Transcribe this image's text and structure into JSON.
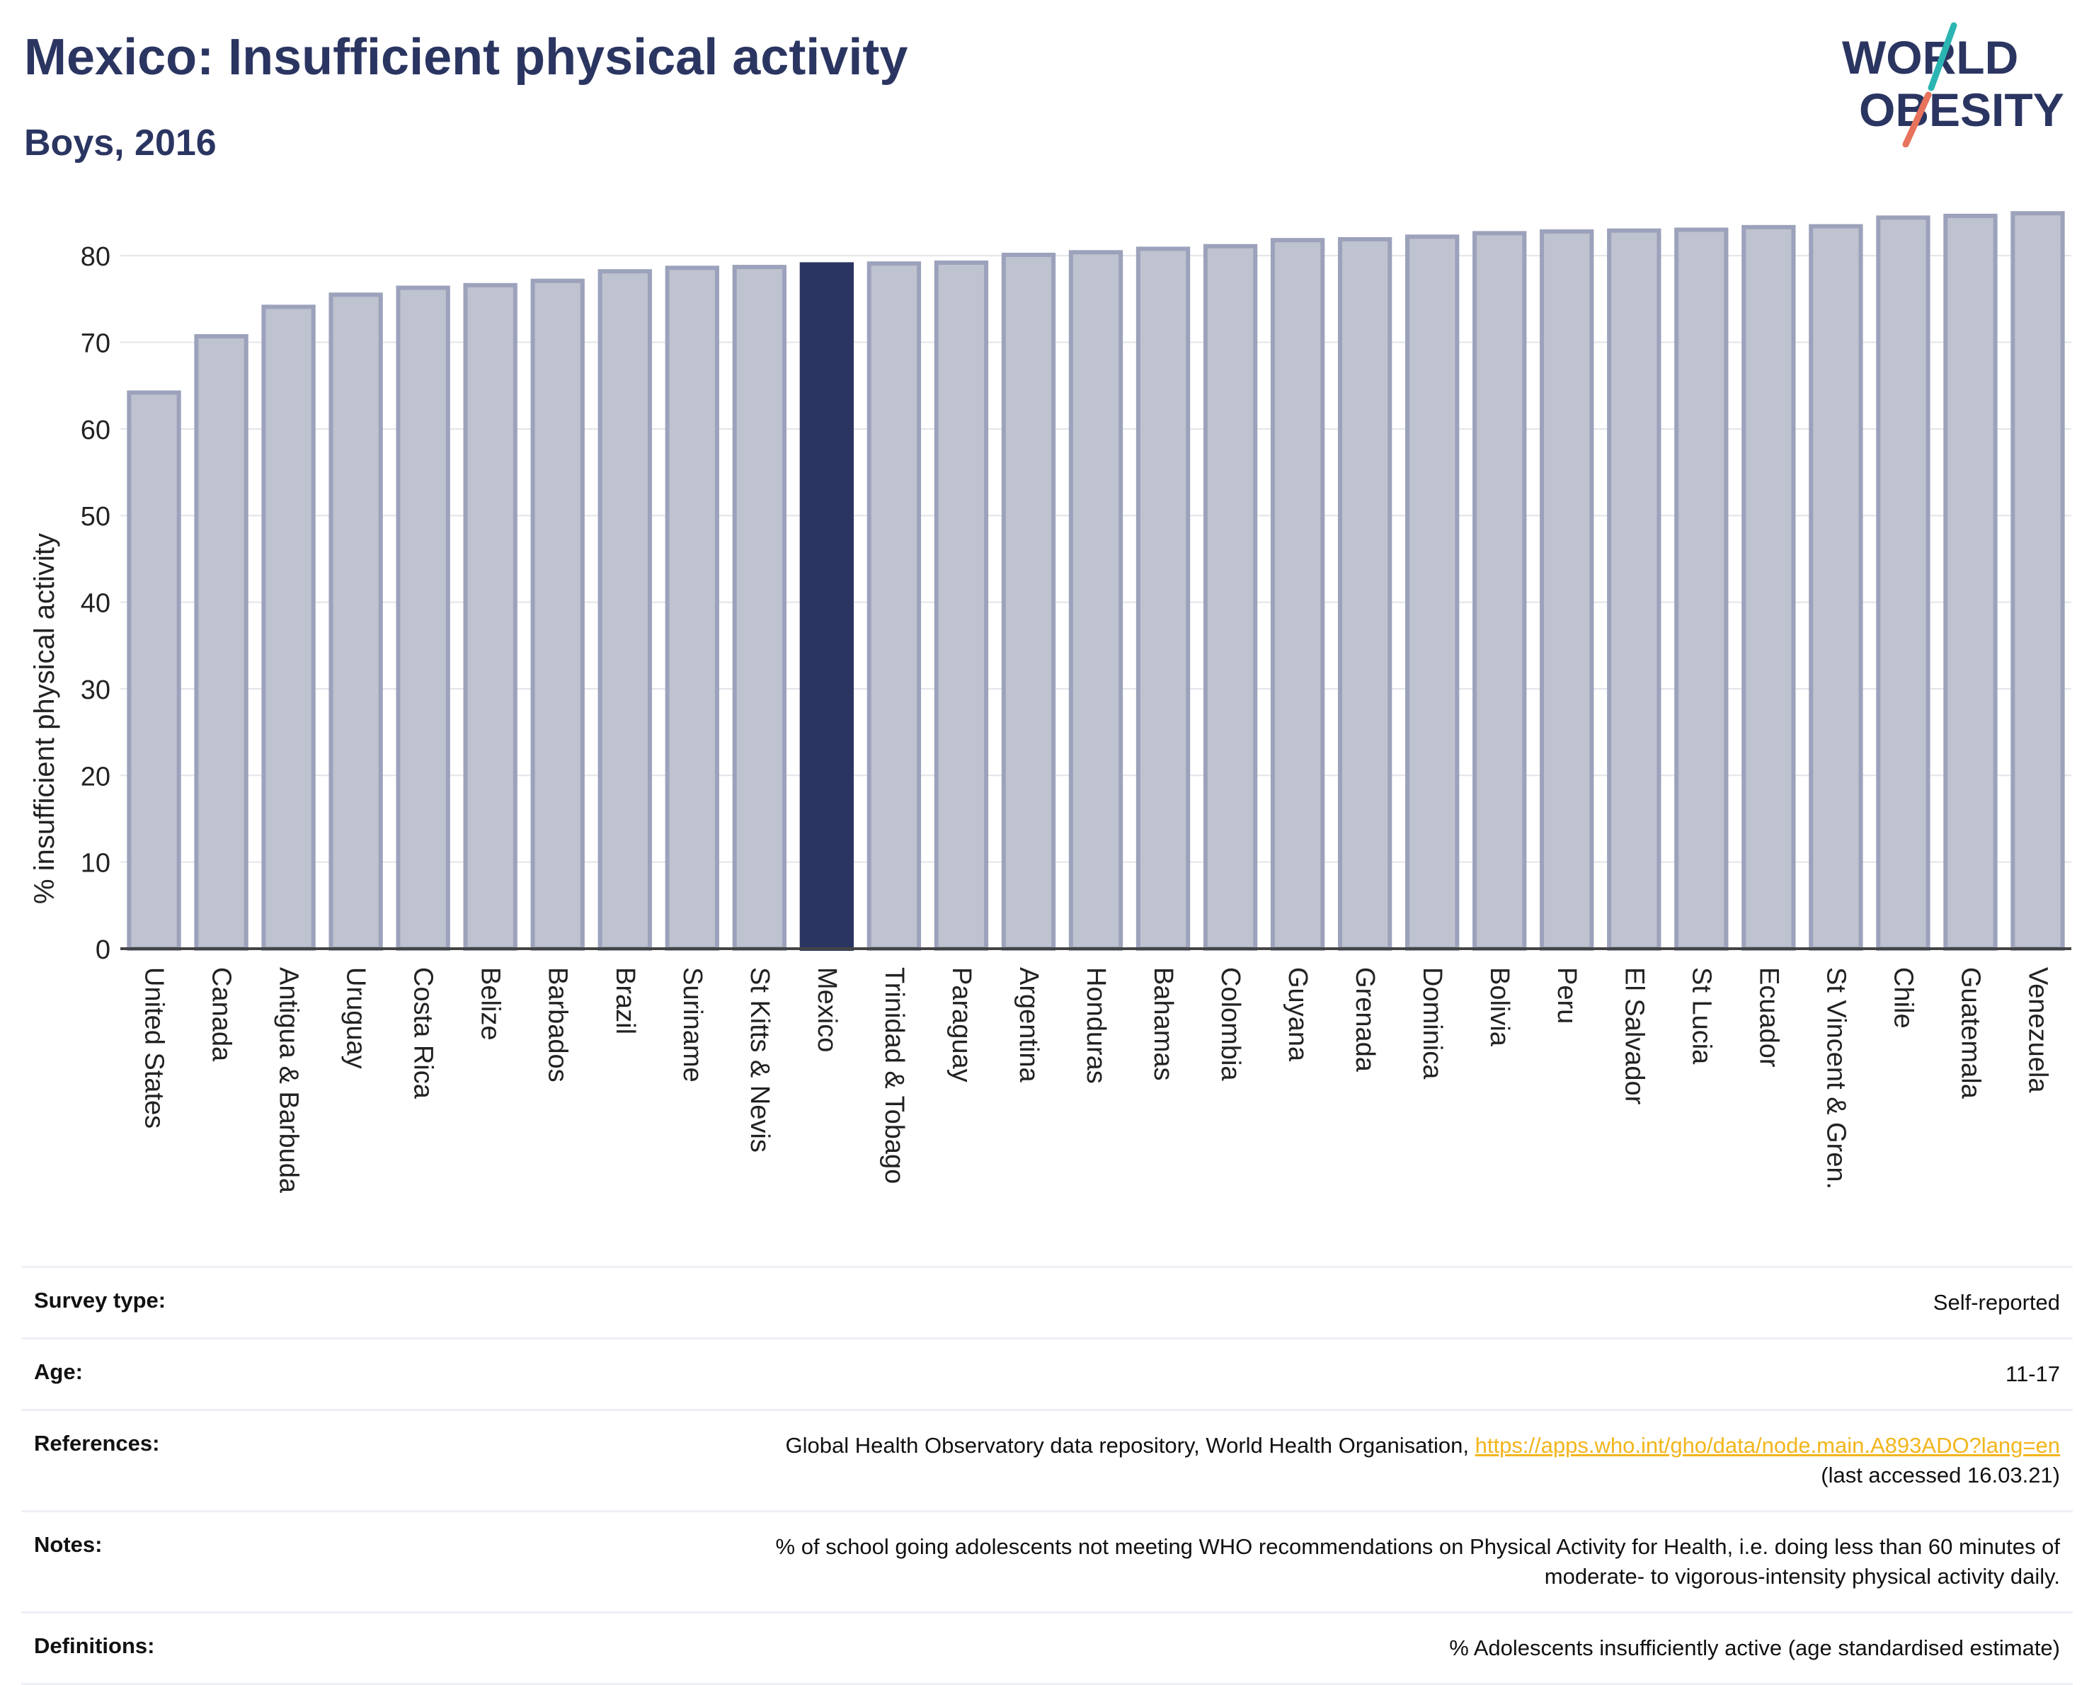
{
  "header": {
    "title": "Mexico: Insufficient physical activity",
    "subtitle": "Boys, 2016"
  },
  "logo": {
    "line1": "WORLD",
    "line2": "OBESITY",
    "colors": {
      "text": "#2b3561",
      "slash_teal": "#2bb5b2",
      "slash_coral": "#e8735c"
    }
  },
  "chart_data": {
    "type": "bar",
    "ylabel": "% insufficient physical activity",
    "xlabel": "",
    "ylim": [
      0,
      85
    ],
    "yticks": [
      0,
      10,
      20,
      30,
      40,
      50,
      60,
      70,
      80
    ],
    "grid": true,
    "highlight": "Mexico",
    "colors": {
      "bar": "#bfc2cf",
      "bar_border": "#9ca2bb",
      "highlight": "#2b3561",
      "axis": "#444444",
      "grid": "#e3e4ea"
    },
    "categories": [
      "United States",
      "Canada",
      "Antigua & Barbuda",
      "Uruguay",
      "Costa Rica",
      "Belize",
      "Barbados",
      "Brazil",
      "Suriname",
      "St Kitts & Nevis",
      "Mexico",
      "Trinidad & Tobago",
      "Paraguay",
      "Argentina",
      "Honduras",
      "Bahamas",
      "Colombia",
      "Guyana",
      "Grenada",
      "Dominica",
      "Bolivia",
      "Peru",
      "El Salvador",
      "St Lucia",
      "Ecuador",
      "St Vincent & Gren.",
      "Chile",
      "Guatemala",
      "Venezuela"
    ],
    "values": [
      64.2,
      70.7,
      74.1,
      75.5,
      76.3,
      76.6,
      77.1,
      78.2,
      78.6,
      78.7,
      79.0,
      79.1,
      79.2,
      80.1,
      80.4,
      80.8,
      81.1,
      81.8,
      81.9,
      82.2,
      82.6,
      82.8,
      82.9,
      83.0,
      83.3,
      83.4,
      84.4,
      84.6,
      84.9
    ]
  },
  "meta": {
    "survey_type": {
      "label": "Survey type:",
      "value": "Self-reported"
    },
    "age": {
      "label": "Age:",
      "value": "11-17"
    },
    "references": {
      "label": "References:",
      "text": "Global Health Observatory data repository, World Health Organisation, ",
      "link": "https://apps.who.int/gho/data/node.main.A893ADO?lang=en",
      "suffix": "(last accessed 16.03.21)"
    },
    "notes": {
      "label": "Notes:",
      "line1": "% of school going adolescents not meeting WHO recommendations on Physical Activity for Health, i.e. doing less than 60 minutes of",
      "line2": "moderate- to vigorous-intensity physical activity daily."
    },
    "definitions": {
      "label": "Definitions:",
      "value": "% Adolescents insufficiently active (age standardised estimate)"
    }
  }
}
